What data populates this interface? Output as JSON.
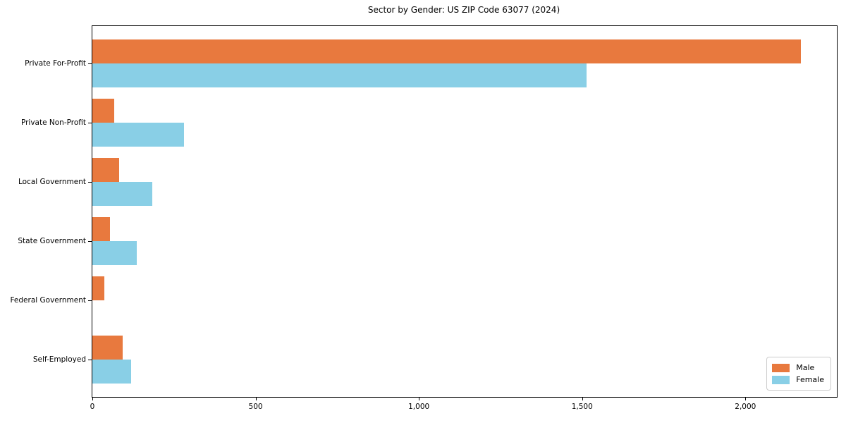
{
  "title": "Sector by Gender: US ZIP Code 63077 (2024)",
  "chart_data": {
    "type": "bar",
    "orientation": "horizontal",
    "title": "Sector by Gender: US ZIP Code 63077 (2024)",
    "categories": [
      "Private For-Profit",
      "Private Non-Profit",
      "Local Government",
      "State Government",
      "Federal Government",
      "Self-Employed"
    ],
    "series": [
      {
        "name": "Male",
        "color": "#e8793e",
        "values": [
          2170,
          68,
          82,
          54,
          36,
          92
        ]
      },
      {
        "name": "Female",
        "color": "#89cfe6",
        "values": [
          1513,
          280,
          184,
          137,
          0,
          119
        ]
      }
    ],
    "xlabel": "",
    "ylabel": "",
    "xlim": [
      0,
      2280
    ],
    "xticks": {
      "values": [
        0,
        500,
        1000,
        1500,
        2000
      ],
      "labels": [
        "0",
        "500",
        "1,000",
        "1,500",
        "2,000"
      ]
    },
    "grid": false,
    "legend": {
      "position": "lower right",
      "entries": [
        "Male",
        "Female"
      ]
    }
  }
}
